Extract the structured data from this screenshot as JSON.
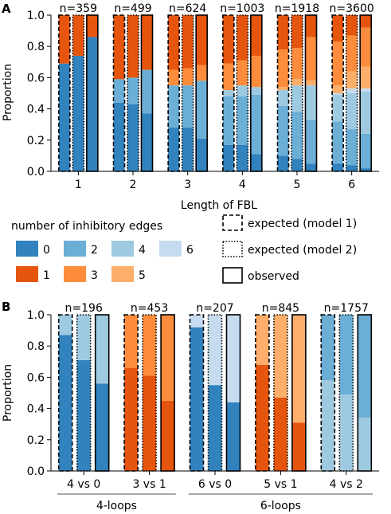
{
  "colors": {
    "0": "#3182bd",
    "1": "#e6550d",
    "2": "#6baed6",
    "3": "#fd8d3c",
    "4": "#9ecae1",
    "5": "#fdae6b",
    "6": "#c6dbef"
  },
  "legend": {
    "title": "number of inhibitory edges",
    "items": [
      {
        "label": "0",
        "key": "0"
      },
      {
        "label": "2",
        "key": "2"
      },
      {
        "label": "4",
        "key": "4"
      },
      {
        "label": "6",
        "key": "6"
      },
      {
        "label": "1",
        "key": "1"
      },
      {
        "label": "3",
        "key": "3"
      },
      {
        "label": "5",
        "key": "5"
      }
    ],
    "styles": [
      {
        "label": "expected (model 1)",
        "style": "dashed"
      },
      {
        "label": "expected (model 2)",
        "style": "dotted"
      },
      {
        "label": "observed",
        "style": "solid"
      }
    ]
  },
  "chart_data": [
    {
      "panel": "A",
      "type": "bar",
      "stacked": true,
      "ylabel": "Proportion",
      "xlabel": "Length of FBL",
      "ylim": [
        0,
        1.0
      ],
      "yticks": [
        "0.0",
        "0.2",
        "0.4",
        "0.6",
        "0.8",
        "1.0"
      ],
      "groups": [
        {
          "label": "1",
          "n": "n=359",
          "bars": [
            {
              "style": "dashed",
              "segments": [
                {
                  "key": "0",
                  "value": 0.69
                },
                {
                  "key": "1",
                  "value": 0.31
                }
              ]
            },
            {
              "style": "dotted",
              "segments": [
                {
                  "key": "0",
                  "value": 0.74
                },
                {
                  "key": "1",
                  "value": 0.26
                }
              ]
            },
            {
              "style": "solid",
              "segments": [
                {
                  "key": "0",
                  "value": 0.86
                },
                {
                  "key": "1",
                  "value": 0.14
                }
              ]
            }
          ]
        },
        {
          "label": "2",
          "n": "n=499",
          "bars": [
            {
              "style": "dashed",
              "segments": [
                {
                  "key": "0",
                  "value": 0.44
                },
                {
                  "key": "2",
                  "value": 0.15
                },
                {
                  "key": "1",
                  "value": 0.41
                }
              ]
            },
            {
              "style": "dotted",
              "segments": [
                {
                  "key": "0",
                  "value": 0.43
                },
                {
                  "key": "2",
                  "value": 0.17
                },
                {
                  "key": "1",
                  "value": 0.4
                }
              ]
            },
            {
              "style": "solid",
              "segments": [
                {
                  "key": "0",
                  "value": 0.37
                },
                {
                  "key": "2",
                  "value": 0.28
                },
                {
                  "key": "1",
                  "value": 0.35
                }
              ]
            }
          ]
        },
        {
          "label": "3",
          "n": "n=624",
          "bars": [
            {
              "style": "dashed",
              "segments": [
                {
                  "key": "0",
                  "value": 0.28
                },
                {
                  "key": "2",
                  "value": 0.27
                },
                {
                  "key": "3",
                  "value": 0.1
                },
                {
                  "key": "1",
                  "value": 0.35
                }
              ]
            },
            {
              "style": "dotted",
              "segments": [
                {
                  "key": "0",
                  "value": 0.28
                },
                {
                  "key": "2",
                  "value": 0.27
                },
                {
                  "key": "3",
                  "value": 0.11
                },
                {
                  "key": "1",
                  "value": 0.34
                }
              ]
            },
            {
              "style": "solid",
              "segments": [
                {
                  "key": "0",
                  "value": 0.21
                },
                {
                  "key": "2",
                  "value": 0.37
                },
                {
                  "key": "3",
                  "value": 0.1
                },
                {
                  "key": "1",
                  "value": 0.32
                }
              ]
            }
          ]
        },
        {
          "label": "4",
          "n": "n=1003",
          "bars": [
            {
              "style": "dashed",
              "segments": [
                {
                  "key": "0",
                  "value": 0.17
                },
                {
                  "key": "2",
                  "value": 0.31
                },
                {
                  "key": "4",
                  "value": 0.04
                },
                {
                  "key": "3",
                  "value": 0.17
                },
                {
                  "key": "1",
                  "value": 0.31
                }
              ]
            },
            {
              "style": "dotted",
              "segments": [
                {
                  "key": "0",
                  "value": 0.17
                },
                {
                  "key": "2",
                  "value": 0.31
                },
                {
                  "key": "4",
                  "value": 0.07
                },
                {
                  "key": "3",
                  "value": 0.16
                },
                {
                  "key": "1",
                  "value": 0.29
                }
              ]
            },
            {
              "style": "solid",
              "segments": [
                {
                  "key": "0",
                  "value": 0.11
                },
                {
                  "key": "2",
                  "value": 0.38
                },
                {
                  "key": "4",
                  "value": 0.05
                },
                {
                  "key": "3",
                  "value": 0.2
                },
                {
                  "key": "1",
                  "value": 0.26
                }
              ]
            }
          ]
        },
        {
          "label": "5",
          "n": "n=1918",
          "bars": [
            {
              "style": "dashed",
              "segments": [
                {
                  "key": "0",
                  "value": 0.1
                },
                {
                  "key": "2",
                  "value": 0.32
                },
                {
                  "key": "4",
                  "value": 0.1
                },
                {
                  "key": "5",
                  "value": 0.02
                },
                {
                  "key": "3",
                  "value": 0.24
                },
                {
                  "key": "1",
                  "value": 0.22
                }
              ]
            },
            {
              "style": "dotted",
              "segments": [
                {
                  "key": "0",
                  "value": 0.08
                },
                {
                  "key": "2",
                  "value": 0.3
                },
                {
                  "key": "4",
                  "value": 0.17
                },
                {
                  "key": "5",
                  "value": 0.04
                },
                {
                  "key": "3",
                  "value": 0.2
                },
                {
                  "key": "1",
                  "value": 0.21
                }
              ]
            },
            {
              "style": "solid",
              "segments": [
                {
                  "key": "0",
                  "value": 0.05
                },
                {
                  "key": "2",
                  "value": 0.28
                },
                {
                  "key": "4",
                  "value": 0.22
                },
                {
                  "key": "5",
                  "value": 0.03
                },
                {
                  "key": "3",
                  "value": 0.28
                },
                {
                  "key": "1",
                  "value": 0.14
                }
              ]
            }
          ]
        },
        {
          "label": "6",
          "n": "n=3600",
          "bars": [
            {
              "style": "dashed",
              "segments": [
                {
                  "key": "0",
                  "value": 0.05
                },
                {
                  "key": "2",
                  "value": 0.27
                },
                {
                  "key": "4",
                  "value": 0.17
                },
                {
                  "key": "6",
                  "value": 0.01
                },
                {
                  "key": "5",
                  "value": 0.05
                },
                {
                  "key": "3",
                  "value": 0.28
                },
                {
                  "key": "1",
                  "value": 0.17
                }
              ]
            },
            {
              "style": "dotted",
              "segments": [
                {
                  "key": "0",
                  "value": 0.04
                },
                {
                  "key": "2",
                  "value": 0.23
                },
                {
                  "key": "4",
                  "value": 0.23
                },
                {
                  "key": "6",
                  "value": 0.03
                },
                {
                  "key": "5",
                  "value": 0.11
                },
                {
                  "key": "3",
                  "value": 0.23
                },
                {
                  "key": "1",
                  "value": 0.13
                }
              ]
            },
            {
              "style": "solid",
              "segments": [
                {
                  "key": "0",
                  "value": 0.02
                },
                {
                  "key": "2",
                  "value": 0.22
                },
                {
                  "key": "4",
                  "value": 0.27
                },
                {
                  "key": "6",
                  "value": 0.02
                },
                {
                  "key": "5",
                  "value": 0.14
                },
                {
                  "key": "3",
                  "value": 0.25
                },
                {
                  "key": "1",
                  "value": 0.08
                }
              ]
            }
          ]
        }
      ]
    },
    {
      "panel": "B",
      "type": "bar",
      "stacked": true,
      "ylabel": "Proportion",
      "ylim": [
        0,
        1.0
      ],
      "yticks": [
        "0.0",
        "0.2",
        "0.4",
        "0.6",
        "0.8",
        "1.0"
      ],
      "supergroups": [
        {
          "label": "4-loops",
          "from": 0,
          "to": 1
        },
        {
          "label": "6-loops",
          "from": 2,
          "to": 4
        }
      ],
      "groups": [
        {
          "label": "4 vs 0",
          "n": "n=196",
          "bars": [
            {
              "style": "dashed",
              "segments": [
                {
                  "key": "0",
                  "value": 0.87
                },
                {
                  "key": "4",
                  "value": 0.13
                }
              ]
            },
            {
              "style": "dotted",
              "segments": [
                {
                  "key": "0",
                  "value": 0.71
                },
                {
                  "key": "4",
                  "value": 0.29
                }
              ]
            },
            {
              "style": "solid",
              "segments": [
                {
                  "key": "0",
                  "value": 0.56
                },
                {
                  "key": "4",
                  "value": 0.44
                }
              ]
            }
          ]
        },
        {
          "label": "3 vs 1",
          "n": "n=453",
          "bars": [
            {
              "style": "dashed",
              "segments": [
                {
                  "key": "1",
                  "value": 0.66
                },
                {
                  "key": "3",
                  "value": 0.34
                }
              ]
            },
            {
              "style": "dotted",
              "segments": [
                {
                  "key": "1",
                  "value": 0.61
                },
                {
                  "key": "3",
                  "value": 0.39
                }
              ]
            },
            {
              "style": "solid",
              "segments": [
                {
                  "key": "1",
                  "value": 0.45
                },
                {
                  "key": "3",
                  "value": 0.55
                }
              ]
            }
          ]
        },
        {
          "label": "6 vs 0",
          "n": "n=207",
          "bars": [
            {
              "style": "dashed",
              "segments": [
                {
                  "key": "0",
                  "value": 0.92
                },
                {
                  "key": "6",
                  "value": 0.08
                }
              ]
            },
            {
              "style": "dotted",
              "segments": [
                {
                  "key": "0",
                  "value": 0.55
                },
                {
                  "key": "6",
                  "value": 0.45
                }
              ]
            },
            {
              "style": "solid",
              "segments": [
                {
                  "key": "0",
                  "value": 0.44
                },
                {
                  "key": "6",
                  "value": 0.56
                }
              ]
            }
          ]
        },
        {
          "label": "5 vs 1",
          "n": "n=845",
          "bars": [
            {
              "style": "dashed",
              "segments": [
                {
                  "key": "1",
                  "value": 0.68
                },
                {
                  "key": "5",
                  "value": 0.32
                }
              ]
            },
            {
              "style": "dotted",
              "segments": [
                {
                  "key": "1",
                  "value": 0.47
                },
                {
                  "key": "5",
                  "value": 0.53
                }
              ]
            },
            {
              "style": "solid",
              "segments": [
                {
                  "key": "1",
                  "value": 0.31
                },
                {
                  "key": "5",
                  "value": 0.69
                }
              ]
            }
          ]
        },
        {
          "label": "4 vs 2",
          "n": "n=1757",
          "bars": [
            {
              "style": "dashed",
              "segments": [
                {
                  "key": "4",
                  "value": 0.58
                },
                {
                  "key": "2",
                  "value": 0.42
                }
              ]
            },
            {
              "style": "dotted",
              "segments": [
                {
                  "key": "4",
                  "value": 0.49
                },
                {
                  "key": "2",
                  "value": 0.51
                }
              ]
            },
            {
              "style": "solid",
              "segments": [
                {
                  "key": "4",
                  "value": 0.34
                },
                {
                  "key": "2",
                  "value": 0.66
                }
              ]
            }
          ]
        }
      ]
    }
  ]
}
